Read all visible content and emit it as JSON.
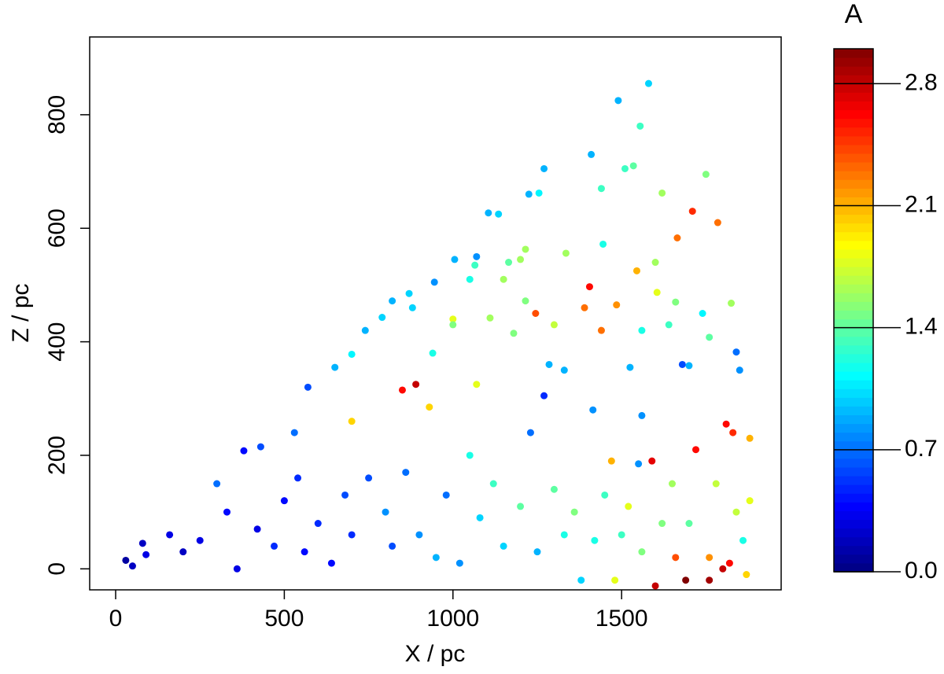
{
  "chart_data": {
    "type": "scatter",
    "x_label": "X / pc",
    "y_label": "Z / pc",
    "colorbar_title": "A",
    "colormap": "jet",
    "xlim": [
      -77,
      1973
    ],
    "ylim": [
      -37,
      937
    ],
    "zlim": [
      0,
      3
    ],
    "xticks": [
      0,
      500,
      1000,
      1500
    ],
    "yticks": [
      0,
      200,
      400,
      600,
      800
    ],
    "zticks": [
      {
        "value": 0,
        "label": "0.0"
      },
      0.7,
      1.4,
      2.1,
      2.8
    ],
    "x": [
      1580,
      1490,
      1555,
      1410,
      1535,
      1510,
      1750,
      1270,
      1440,
      1225,
      1255,
      1620,
      1710,
      1785,
      1105,
      1135,
      1665,
      1445,
      1215,
      1335,
      1070,
      1005,
      1165,
      1200,
      1600,
      1065,
      945,
      1150,
      1545,
      1050,
      1405,
      820,
      1485,
      1390,
      1605,
      1660,
      1825,
      870,
      1000,
      1110,
      880,
      1215,
      1740,
      1245,
      740,
      790,
      1300,
      1440,
      1000,
      1640,
      1180,
      1560,
      650,
      700,
      1285,
      1680,
      1700,
      1840,
      1760,
      940,
      570,
      850,
      890,
      1070,
      1330,
      1525,
      1850,
      380,
      430,
      530,
      700,
      930,
      1270,
      1415,
      1560,
      1810,
      1830,
      1880,
      1720,
      1470,
      1590,
      1550,
      30,
      50,
      80,
      90,
      160,
      200,
      250,
      300,
      330,
      360,
      420,
      470,
      500,
      540,
      560,
      600,
      640,
      680,
      700,
      750,
      800,
      820,
      860,
      900,
      950,
      980,
      1020,
      1050,
      1080,
      1120,
      1150,
      1200,
      1230,
      1250,
      1300,
      1330,
      1360,
      1380,
      1420,
      1450,
      1480,
      1500,
      1520,
      1560,
      1600,
      1620,
      1650,
      1690,
      1700,
      1760,
      1780,
      1800,
      1820,
      1840,
      1860,
      1880,
      1870,
      1760,
      1660
    ],
    "y": [
      855,
      825,
      780,
      730,
      710,
      705,
      695,
      705,
      670,
      660,
      662,
      662,
      630,
      610,
      627,
      625,
      583,
      572,
      563,
      556,
      550,
      545,
      540,
      545,
      540,
      535,
      505,
      510,
      525,
      510,
      497,
      472,
      465,
      460,
      487,
      470,
      468,
      485,
      440,
      442,
      460,
      472,
      450,
      450,
      420,
      443,
      430,
      420,
      430,
      430,
      415,
      420,
      355,
      378,
      360,
      360,
      358,
      382,
      408,
      380,
      320,
      315,
      325,
      325,
      350,
      355,
      350,
      208,
      215,
      240,
      260,
      285,
      305,
      280,
      270,
      255,
      240,
      230,
      210,
      190,
      190,
      185,
      15,
      5,
      45,
      25,
      60,
      30,
      50,
      150,
      100,
      0,
      70,
      40,
      120,
      160,
      30,
      80,
      10,
      130,
      60,
      160,
      100,
      40,
      170,
      60,
      20,
      130,
      10,
      200,
      90,
      150,
      40,
      110,
      240,
      30,
      140,
      60,
      100,
      -20,
      50,
      130,
      -20,
      60,
      110,
      30,
      -30,
      80,
      150,
      -20,
      80,
      -20,
      150,
      0,
      10,
      100,
      50,
      120,
      -10,
      20,
      20
    ],
    "c": [
      1.0,
      0.9,
      1.3,
      0.9,
      1.4,
      1.3,
      1.5,
      0.9,
      1.3,
      0.9,
      1.1,
      1.6,
      2.5,
      2.3,
      0.9,
      1.0,
      2.3,
      1.2,
      1.6,
      1.6,
      0.8,
      0.9,
      1.4,
      1.6,
      1.6,
      1.3,
      0.8,
      1.6,
      2.1,
      1.2,
      2.6,
      0.9,
      2.2,
      2.3,
      1.8,
      1.5,
      1.6,
      1.0,
      1.8,
      1.6,
      1.0,
      1.5,
      1.1,
      2.4,
      0.9,
      1.0,
      1.7,
      2.3,
      1.5,
      1.3,
      1.5,
      1.2,
      0.9,
      1.1,
      0.9,
      0.6,
      0.9,
      0.7,
      1.4,
      1.2,
      0.6,
      2.6,
      2.8,
      1.8,
      0.9,
      0.9,
      0.8,
      0.4,
      0.6,
      0.7,
      2.0,
      2.0,
      0.5,
      0.8,
      0.8,
      2.6,
      2.5,
      2.1,
      2.6,
      2.1,
      2.7,
      0.8,
      0.1,
      0.2,
      0.2,
      0.3,
      0.3,
      0.2,
      0.3,
      0.7,
      0.4,
      0.3,
      0.3,
      0.5,
      0.4,
      0.5,
      0.4,
      0.5,
      0.4,
      0.6,
      0.5,
      0.6,
      0.8,
      0.6,
      0.7,
      0.8,
      0.9,
      0.7,
      0.8,
      1.2,
      1.0,
      1.3,
      1.0,
      1.4,
      0.7,
      0.9,
      1.4,
      1.2,
      1.5,
      1.0,
      1.2,
      1.3,
      1.8,
      1.3,
      1.8,
      1.5,
      2.8,
      1.5,
      1.6,
      3.0,
      1.4,
      2.9,
      1.7,
      2.8,
      2.6,
      1.7,
      1.2,
      1.8,
      2.0,
      2.2,
      2.4
    ]
  }
}
